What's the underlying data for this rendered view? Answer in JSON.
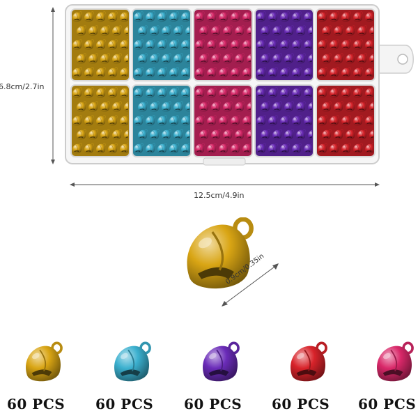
{
  "dimensions": {
    "height_label": "6.8cm/2.7in",
    "width_label": "12.5cm/4.9in",
    "bell_size_label": "0.9cm/0.35in"
  },
  "colors": {
    "gold": "#d9a514",
    "blue": "#3bb0cf",
    "pink": "#d92869",
    "purple": "#6a2bb8",
    "red": "#d8232a"
  },
  "box_compartments": [
    {
      "row": 1,
      "colors": [
        "gold",
        "blue",
        "pink",
        "purple",
        "red"
      ]
    },
    {
      "row": 2,
      "colors": [
        "gold",
        "blue",
        "pink",
        "purple",
        "red"
      ]
    }
  ],
  "bells": [
    {
      "color": "gold",
      "label": "60 PCS"
    },
    {
      "color": "blue",
      "label": "60 PCS"
    },
    {
      "color": "purple",
      "label": "60 PCS"
    },
    {
      "color": "red",
      "label": "60 PCS"
    },
    {
      "color": "pink",
      "label": "60 PCS"
    }
  ]
}
